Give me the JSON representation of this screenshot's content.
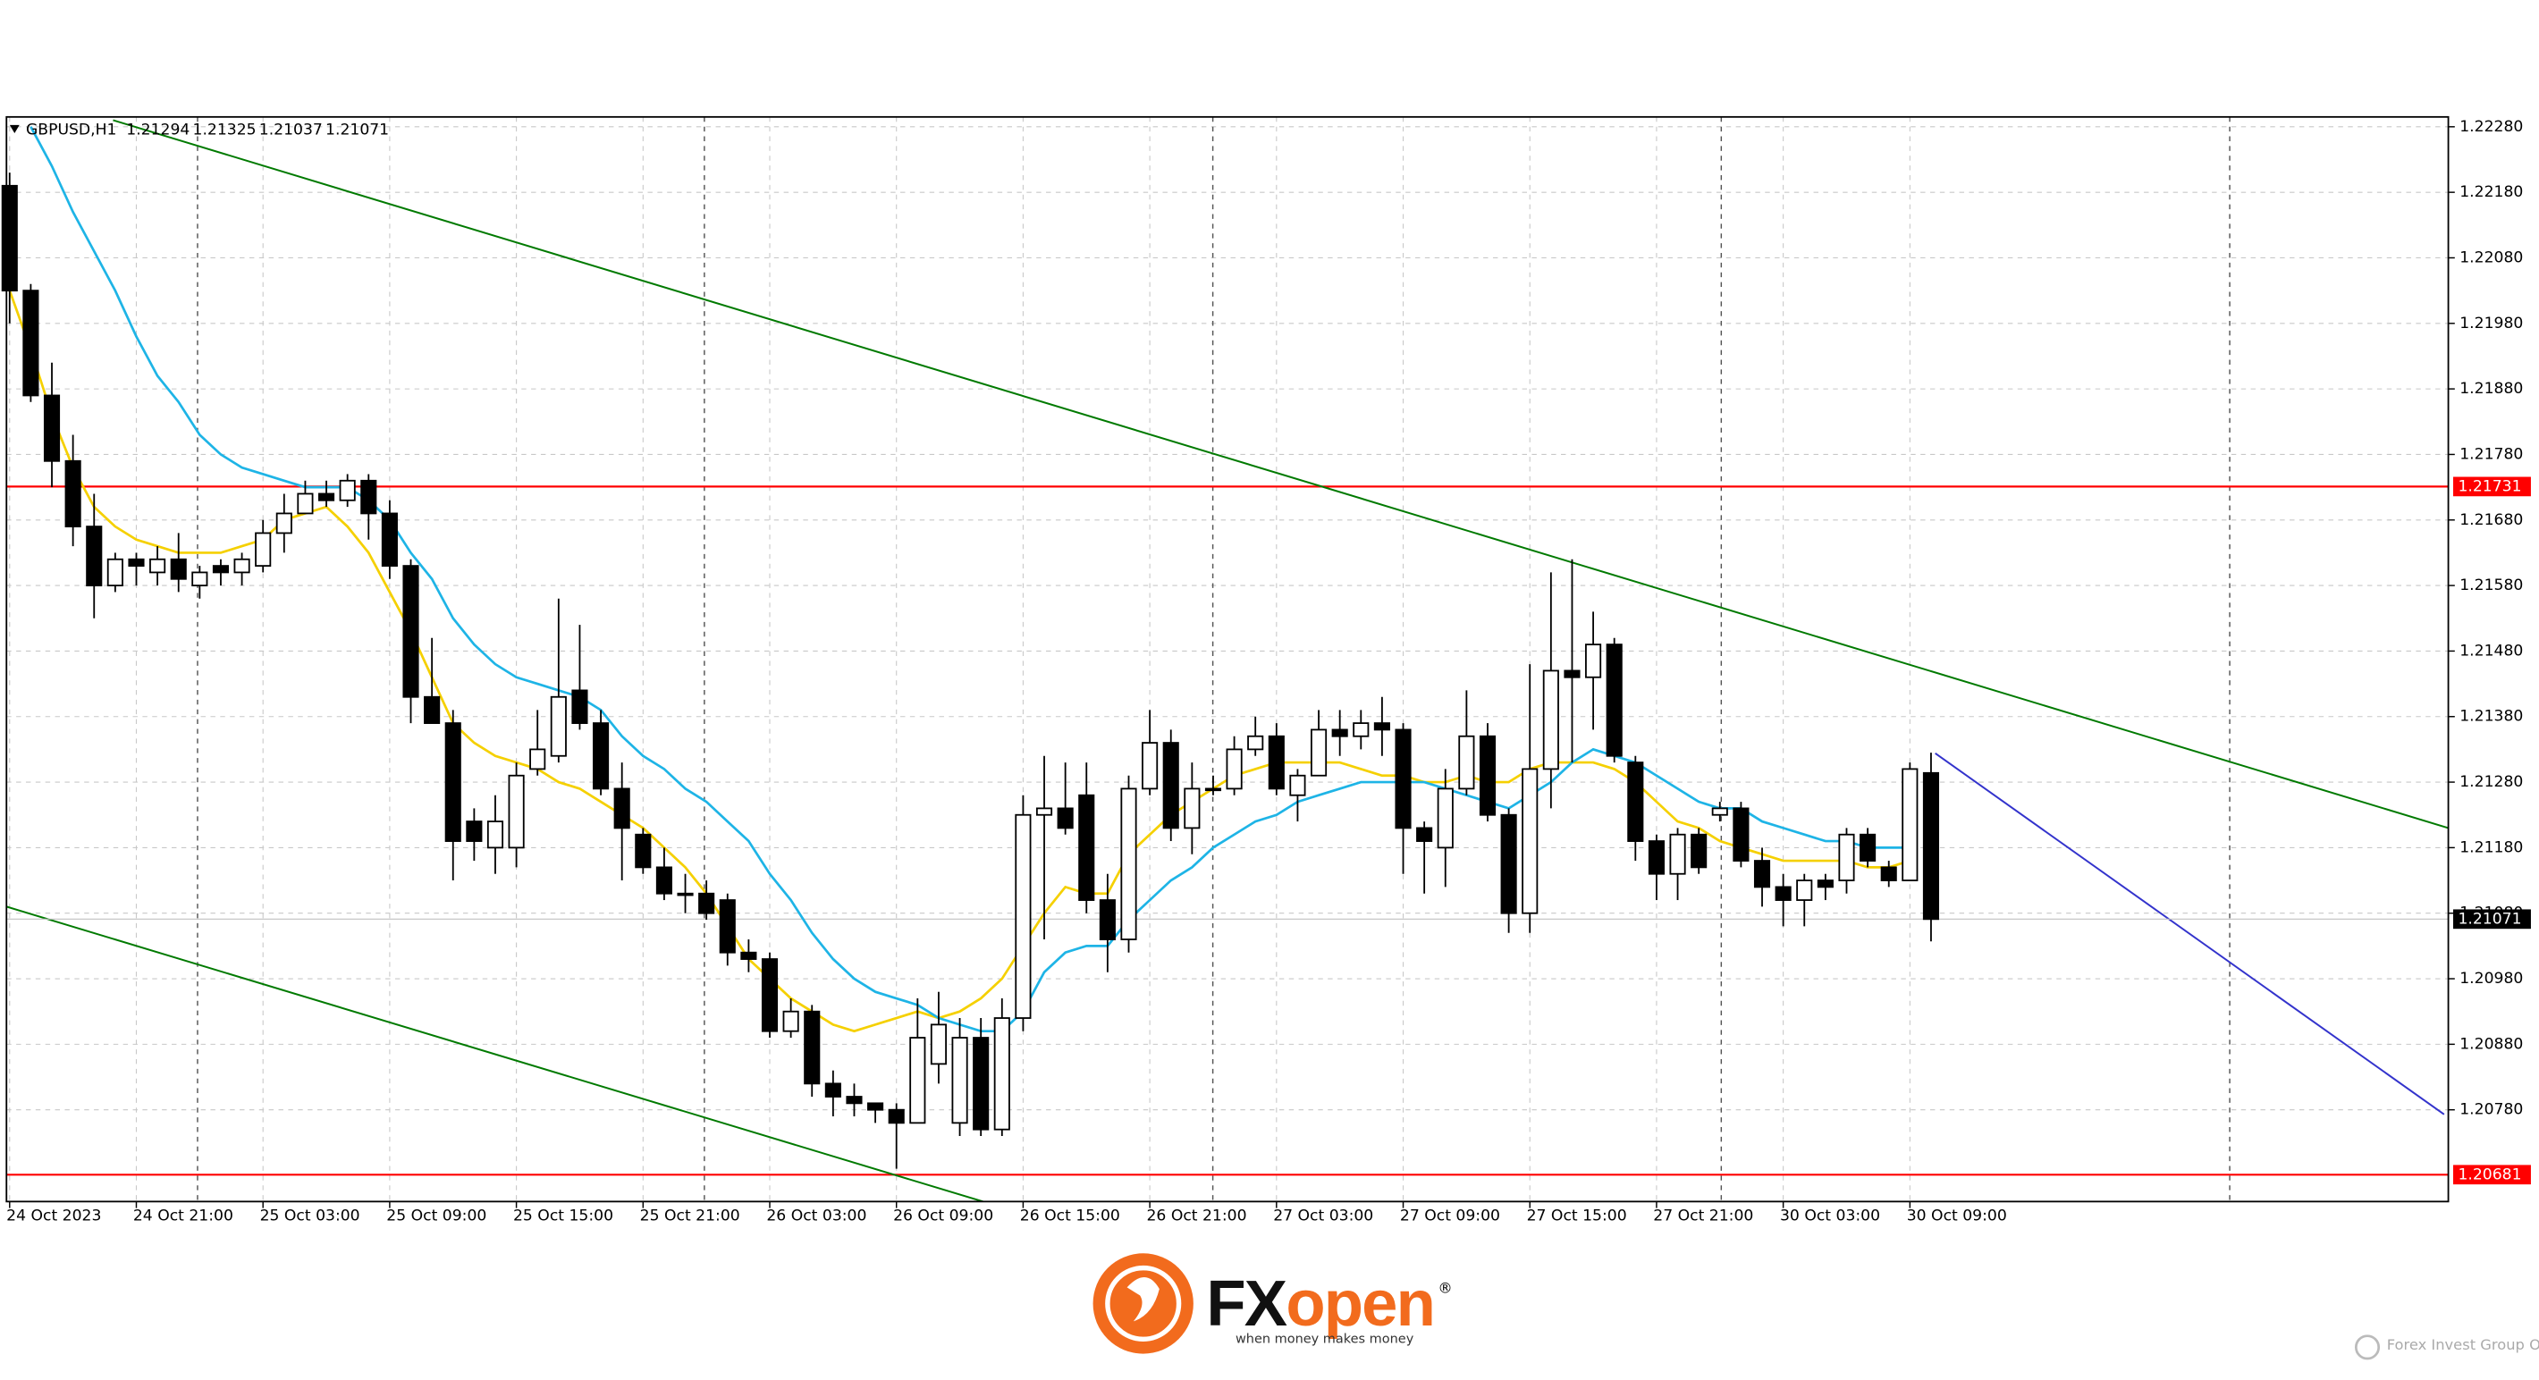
{
  "chart_data": {
    "type": "candlestick",
    "title": "GBPUSD,H1",
    "open": [
      1.2219,
      1.2203,
      1.2187,
      1.2177,
      1.2167,
      1.2158,
      1.2162,
      1.216,
      1.2162,
      1.2158,
      1.2161,
      1.216,
      1.2161,
      1.2166,
      1.2169,
      1.2172,
      1.2171,
      1.2174,
      1.2169,
      1.2161,
      1.2141,
      1.2137,
      1.2122,
      1.2118,
      1.2118,
      1.213,
      1.2132,
      1.2142,
      1.2137,
      1.2127,
      1.212,
      1.2115,
      1.2111,
      1.2111,
      1.211,
      1.2102,
      1.2101,
      1.209,
      1.2093,
      1.2082,
      1.208,
      1.2079,
      1.2078,
      1.2076,
      1.2085,
      1.2076,
      1.2089,
      1.2075,
      1.2092,
      1.2123,
      1.2124,
      1.2126,
      1.211,
      1.2104,
      1.2127,
      1.2134,
      1.2121,
      1.2127,
      1.2127,
      1.2133,
      1.2135,
      1.2126,
      1.2129,
      1.2136,
      1.2135,
      1.2137,
      1.2136,
      1.2121,
      1.2118,
      1.2127,
      1.2135,
      1.2123,
      1.2108,
      1.213,
      1.2145,
      1.2144,
      1.2149,
      1.2131,
      1.2119,
      1.2114,
      1.212,
      1.2123,
      1.2124,
      1.2116,
      1.2112,
      1.211,
      1.2113,
      1.2113,
      1.212,
      1.2115,
      1.2113,
      1.21294
    ],
    "high": [
      1.2221,
      1.2204,
      1.2192,
      1.2181,
      1.2172,
      1.2163,
      1.2163,
      1.2164,
      1.2166,
      1.2161,
      1.2162,
      1.2163,
      1.2168,
      1.2172,
      1.2174,
      1.2174,
      1.2175,
      1.2175,
      1.2171,
      1.2162,
      1.215,
      1.2139,
      1.2124,
      1.2126,
      1.2131,
      1.2139,
      1.2156,
      1.2152,
      1.2139,
      1.2131,
      1.2121,
      1.2118,
      1.2114,
      1.2113,
      1.2111,
      1.2104,
      1.2102,
      1.2095,
      1.2094,
      1.2084,
      1.2082,
      1.2079,
      1.2079,
      1.2095,
      1.2096,
      1.2092,
      1.2092,
      1.2095,
      1.2126,
      1.2132,
      1.2131,
      1.2131,
      1.2114,
      1.2129,
      1.2139,
      1.2136,
      1.2131,
      1.2129,
      1.2135,
      1.2138,
      1.2137,
      1.213,
      1.2139,
      1.2139,
      1.2139,
      1.2141,
      1.2137,
      1.2122,
      1.213,
      1.2142,
      1.2137,
      1.2124,
      1.2146,
      1.216,
      1.2162,
      1.2154,
      1.215,
      1.2132,
      1.212,
      1.2121,
      1.2121,
      1.2125,
      1.2125,
      1.2118,
      1.2114,
      1.2114,
      1.2114,
      1.2121,
      1.2121,
      1.2116,
      1.2131,
      1.21325
    ],
    "low": [
      1.2198,
      1.2186,
      1.2173,
      1.2164,
      1.2153,
      1.2157,
      1.2158,
      1.2158,
      1.2157,
      1.2156,
      1.2158,
      1.2158,
      1.216,
      1.2163,
      1.2169,
      1.217,
      1.217,
      1.2165,
      1.2159,
      1.2137,
      1.2137,
      1.2113,
      1.2116,
      1.2114,
      1.2115,
      1.2129,
      1.2131,
      1.2136,
      1.2126,
      1.2113,
      1.2114,
      1.211,
      1.2108,
      1.2107,
      1.21,
      1.2099,
      1.2089,
      1.2089,
      1.208,
      1.2077,
      1.2077,
      1.2076,
      1.2069,
      1.2076,
      1.2082,
      1.2074,
      1.2074,
      1.2074,
      1.209,
      1.2104,
      1.212,
      1.2108,
      1.2099,
      1.2102,
      1.2126,
      1.2119,
      1.2117,
      1.2126,
      1.2126,
      1.2132,
      1.2126,
      1.2122,
      1.2129,
      1.2132,
      1.2133,
      1.2132,
      1.2114,
      1.2111,
      1.2112,
      1.2126,
      1.2122,
      1.2105,
      1.2105,
      1.2124,
      1.2131,
      1.2136,
      1.2131,
      1.2116,
      1.211,
      1.211,
      1.2114,
      1.2122,
      1.2115,
      1.2109,
      1.2106,
      1.2106,
      1.211,
      1.2111,
      1.2115,
      1.2112,
      1.2113,
      1.21037
    ],
    "close": [
      1.2203,
      1.2187,
      1.2177,
      1.2167,
      1.2158,
      1.2162,
      1.2161,
      1.2162,
      1.2159,
      1.216,
      1.216,
      1.2162,
      1.2166,
      1.2169,
      1.2172,
      1.2171,
      1.2174,
      1.2169,
      1.2161,
      1.2141,
      1.2137,
      1.2119,
      1.2119,
      1.2122,
      1.2129,
      1.2133,
      1.2141,
      1.2137,
      1.2127,
      1.2121,
      1.2115,
      1.2111,
      1.2111,
      1.2108,
      1.2102,
      1.2101,
      1.209,
      1.2093,
      1.2082,
      1.208,
      1.2079,
      1.2078,
      1.2076,
      1.2089,
      1.2091,
      1.2089,
      1.2075,
      1.2092,
      1.2123,
      1.2124,
      1.2121,
      1.211,
      1.2104,
      1.2127,
      1.2134,
      1.2121,
      1.2127,
      1.2127,
      1.2133,
      1.2135,
      1.2127,
      1.2129,
      1.2136,
      1.2135,
      1.2137,
      1.2136,
      1.2121,
      1.2119,
      1.2127,
      1.2135,
      1.2123,
      1.2108,
      1.213,
      1.2145,
      1.2144,
      1.2149,
      1.2132,
      1.2119,
      1.2114,
      1.212,
      1.2115,
      1.2124,
      1.2116,
      1.2112,
      1.211,
      1.2113,
      1.2112,
      1.212,
      1.2116,
      1.2113,
      1.213,
      1.21071
    ],
    "up_color": "#ffffff",
    "down_color": "#000000",
    "indicators": [
      {
        "color": "#f5d000",
        "values": [
          1.2203,
          1.2194,
          1.2184,
          1.2176,
          1.217,
          1.2167,
          1.2165,
          1.2164,
          1.2163,
          1.2163,
          1.2163,
          1.2164,
          1.2165,
          1.2168,
          1.2169,
          1.217,
          1.2167,
          1.2163,
          1.2157,
          1.2151,
          1.2144,
          1.2137,
          1.2134,
          1.2132,
          1.2131,
          1.213,
          1.2128,
          1.2127,
          1.2125,
          1.2123,
          1.2121,
          1.2118,
          1.2115,
          1.2111,
          1.2106,
          1.2101,
          1.2098,
          1.2095,
          1.2093,
          1.2091,
          1.209,
          1.2091,
          1.2092,
          1.2093,
          1.2092,
          1.2093,
          1.2095,
          1.2098,
          1.2103,
          1.2108,
          1.2112,
          1.2111,
          1.2111,
          1.2117,
          1.212,
          1.2123,
          1.2125,
          1.2127,
          1.2129,
          1.213,
          1.2131,
          1.2131,
          1.2131,
          1.2131,
          1.213,
          1.2129,
          1.2129,
          1.2128,
          1.2128,
          1.2129,
          1.2128,
          1.2128,
          1.213,
          1.2131,
          1.2131,
          1.2131,
          1.213,
          1.2128,
          1.2125,
          1.2122,
          1.2121,
          1.2119,
          1.2118,
          1.2117,
          1.2116,
          1.2116,
          1.2116,
          1.2116,
          1.2115,
          1.2115,
          1.2116,
          null
        ]
      },
      {
        "color": "#1eb4e6",
        "values": [
          null,
          1.2228,
          1.2222,
          1.2215,
          1.2209,
          1.2203,
          1.2196,
          1.219,
          1.2186,
          1.2181,
          1.2178,
          1.2176,
          1.2175,
          1.2174,
          1.2173,
          1.2173,
          1.2173,
          1.2171,
          1.2168,
          1.2163,
          1.2159,
          1.2153,
          1.2149,
          1.2146,
          1.2144,
          1.2143,
          1.2142,
          1.2141,
          1.2139,
          1.2135,
          1.2132,
          1.213,
          1.2127,
          1.2125,
          1.2122,
          1.2119,
          1.2114,
          1.211,
          1.2105,
          1.2101,
          1.2098,
          1.2096,
          1.2095,
          1.2094,
          1.2092,
          1.2091,
          1.209,
          1.209,
          1.2093,
          1.2099,
          1.2102,
          1.2103,
          1.2103,
          1.2107,
          1.211,
          1.2113,
          1.2115,
          1.2118,
          1.212,
          1.2122,
          1.2123,
          1.2125,
          1.2126,
          1.2127,
          1.2128,
          1.2128,
          1.2128,
          1.2128,
          1.2127,
          1.2126,
          1.2125,
          1.2124,
          1.2126,
          1.2128,
          1.2131,
          1.2133,
          1.2132,
          1.2131,
          1.2129,
          1.2127,
          1.2125,
          1.2124,
          1.2124,
          1.2122,
          1.2121,
          1.212,
          1.2119,
          1.2119,
          1.2118,
          1.2118,
          1.2118,
          null
        ]
      }
    ],
    "hlines": [
      {
        "value": 1.21731,
        "color": "#ff0000"
      },
      {
        "value": 1.20681,
        "color": "#ff0000"
      }
    ],
    "trendlines": [
      {
        "color": "#007a00",
        "x": [
          4.9,
          115.5
        ],
        "values": [
          1.2229,
          1.2121
        ]
      },
      {
        "color": "#007a00",
        "x": [
          -0.15,
          46.1
        ],
        "values": [
          1.2109,
          1.2064
        ]
      },
      {
        "color": "#3333cc",
        "x": [
          91.2,
          115.3
        ],
        "values": [
          1.21324,
          1.20773
        ]
      }
    ],
    "xlim": [
      -0.15,
      115.5
    ],
    "ylim": [
      1.2064,
      1.22295
    ],
    "xticks": [
      {
        "value": 0,
        "label": "24 Oct 2023"
      },
      {
        "value": 6,
        "label": "24 Oct 21:00"
      },
      {
        "value": 12,
        "label": "25 Oct 03:00"
      },
      {
        "value": 18,
        "label": "25 Oct 09:00"
      },
      {
        "value": 24,
        "label": "25 Oct 15:00"
      },
      {
        "value": 30,
        "label": "25 Oct 21:00"
      },
      {
        "value": 36,
        "label": "26 Oct 03:00"
      },
      {
        "value": 42,
        "label": "26 Oct 09:00"
      },
      {
        "value": 48,
        "label": "26 Oct 15:00"
      },
      {
        "value": 54,
        "label": "26 Oct 21:00"
      },
      {
        "value": 60,
        "label": "27 Oct 03:00"
      },
      {
        "value": 66,
        "label": "27 Oct 09:00"
      },
      {
        "value": 72,
        "label": "27 Oct 15:00"
      },
      {
        "value": 78,
        "label": "27 Oct 21:00"
      },
      {
        "value": 84,
        "label": "30 Oct 03:00"
      },
      {
        "value": 90,
        "label": "30 Oct 09:00"
      }
    ],
    "yticks": [
      {
        "value": 1.2228,
        "label": "1.22280"
      },
      {
        "value": 1.2218,
        "label": "1.22180"
      },
      {
        "value": 1.2208,
        "label": "1.22080"
      },
      {
        "value": 1.2198,
        "label": "1.21980"
      },
      {
        "value": 1.2188,
        "label": "1.21880"
      },
      {
        "value": 1.2178,
        "label": "1.21780"
      },
      {
        "value": 1.2168,
        "label": "1.21680"
      },
      {
        "value": 1.2158,
        "label": "1.21580"
      },
      {
        "value": 1.2148,
        "label": "1.21480"
      },
      {
        "value": 1.2138,
        "label": "1.21380"
      },
      {
        "value": 1.2128,
        "label": "1.21280"
      },
      {
        "value": 1.2118,
        "label": "1.21180"
      },
      {
        "value": 1.2108,
        "label": "1.21080"
      },
      {
        "value": 1.2098,
        "label": "1.20980"
      },
      {
        "value": 1.2088,
        "label": "1.20880"
      },
      {
        "value": 1.2078,
        "label": "1.20780"
      }
    ],
    "grid": true
  },
  "logo": {
    "prefix": "FX",
    "suffix": "open",
    "registered": "®",
    "tagline": "when money makes money",
    "watermark": "Forex Invest Group OU"
  }
}
